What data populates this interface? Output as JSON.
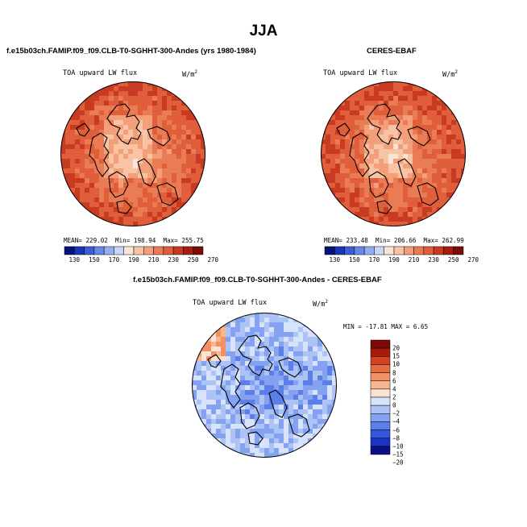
{
  "figure": {
    "title": "JJA"
  },
  "panels": [
    {
      "title": "f.e15b03ch.FAMIP.f09_f09.CLB-T0-SGHHT-300-Andes (yrs 1980-1984)",
      "variable": "TOA upward LW flux",
      "units_base": "W/m",
      "units_exp": "2",
      "stats": {
        "mean_label": "MEAN=",
        "mean": "229.02",
        "min_label": "Min=",
        "min": "198.94",
        "max_label": "Max=",
        "max": "255.75"
      }
    },
    {
      "title": "CERES-EBAF",
      "variable": "TOA upward LW flux",
      "units_base": "W/m",
      "units_exp": "2",
      "stats": {
        "mean_label": "MEAN=",
        "mean": "233.48",
        "min_label": "Min=",
        "min": "206.66",
        "max_label": "Max=",
        "max": "262.99"
      }
    },
    {
      "title": "f.e15b03ch.FAMIP.f09_f09.CLB-T0-SGHHT-300-Andes - CERES-EBAF",
      "variable": "TOA upward LW flux",
      "units_base": "W/m",
      "units_exp": "2",
      "stats_line": "MIN = -17.81 MAX =   6.65"
    }
  ],
  "colors": {
    "abs_scale": [
      "#08137a",
      "#1c34b6",
      "#3a5fd6",
      "#6688e6",
      "#92aff0",
      "#c5d6f7",
      "#fbe4d6",
      "#f8c4a6",
      "#f3a07a",
      "#ea7c55",
      "#e05e3a",
      "#c83b22",
      "#a41d10",
      "#7a0c06"
    ],
    "diff_scale": [
      "#0a0f85",
      "#1c32c2",
      "#3355e0",
      "#5b7ee8",
      "#84a2f0",
      "#adc3f6",
      "#d6e3fa",
      "#fce2d2",
      "#f8b791",
      "#f29164",
      "#e86a42",
      "#d14222",
      "#a81a0c",
      "#7d0906"
    ],
    "land_line": "#000000"
  },
  "chart_data": [
    {
      "type": "heatmap",
      "projection": "north-polar-stereographic",
      "title": "f.e15b03ch.FAMIP.f09_f09.CLB-T0-SGHHT-300-Andes (yrs 1980-1984)",
      "variable": "TOA upward LW flux",
      "units": "W/m^2",
      "colorbar_levels": [
        130,
        150,
        170,
        190,
        210,
        230,
        250,
        270
      ],
      "colorbar_tick_labels": [
        "130",
        "150",
        "170",
        "190",
        "210",
        "230",
        "250",
        "270"
      ],
      "mean": 229.02,
      "min": 198.94,
      "max": 255.75
    },
    {
      "type": "heatmap",
      "projection": "north-polar-stereographic",
      "title": "CERES-EBAF",
      "variable": "TOA upward LW flux",
      "units": "W/m^2",
      "colorbar_levels": [
        130,
        150,
        170,
        190,
        210,
        230,
        250,
        270
      ],
      "colorbar_tick_labels": [
        "130",
        "150",
        "170",
        "190",
        "210",
        "230",
        "250",
        "270"
      ],
      "mean": 233.48,
      "min": 206.66,
      "max": 262.99
    },
    {
      "type": "heatmap",
      "projection": "north-polar-stereographic",
      "title": "f.e15b03ch.FAMIP.f09_f09.CLB-T0-SGHHT-300-Andes - CERES-EBAF",
      "variable": "TOA upward LW flux",
      "units": "W/m^2",
      "colorbar_levels": [
        20,
        15,
        10,
        8,
        6,
        4,
        2,
        0,
        -2,
        -4,
        -6,
        -8,
        -10,
        -15,
        -20
      ],
      "colorbar_tick_labels": [
        "20",
        "15",
        "10",
        "8",
        "6",
        "4",
        "2",
        "0",
        "−2",
        "−4",
        "−6",
        "−8",
        "−10",
        "−15",
        "−20"
      ],
      "min": -17.81,
      "max": 6.65
    }
  ]
}
